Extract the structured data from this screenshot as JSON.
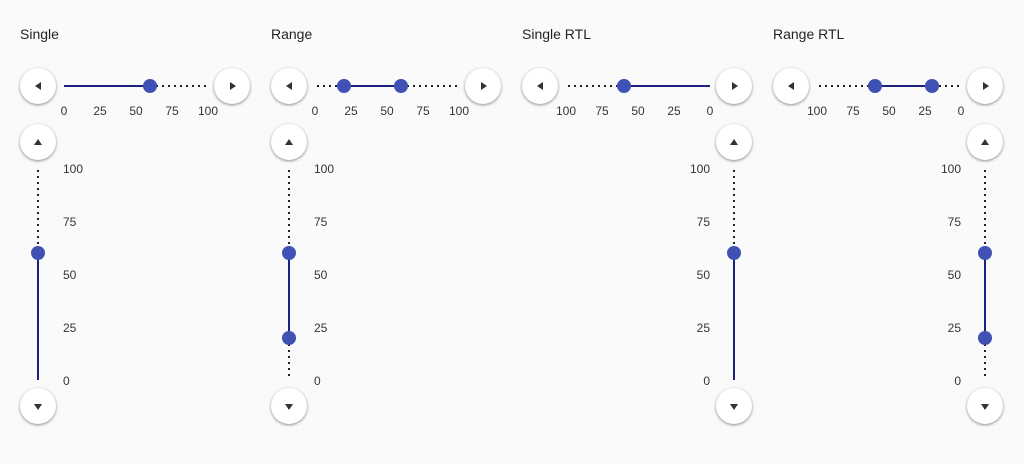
{
  "panels": [
    {
      "title": "Single",
      "rtl": false,
      "range": false,
      "values": [
        60
      ],
      "horizontal_ticks": [
        "0",
        "25",
        "50",
        "75",
        "100"
      ],
      "vertical_ticks": [
        "100",
        "75",
        "50",
        "25",
        "0"
      ]
    },
    {
      "title": "Range",
      "rtl": false,
      "range": true,
      "values": [
        20,
        60
      ],
      "horizontal_ticks": [
        "0",
        "25",
        "50",
        "75",
        "100"
      ],
      "vertical_ticks": [
        "100",
        "75",
        "50",
        "25",
        "0"
      ]
    },
    {
      "title": "Single RTL",
      "rtl": true,
      "range": false,
      "values": [
        60
      ],
      "horizontal_ticks": [
        "100",
        "75",
        "50",
        "25",
        "0"
      ],
      "vertical_ticks": [
        "100",
        "75",
        "50",
        "25",
        "0"
      ]
    },
    {
      "title": "Range RTL",
      "rtl": true,
      "range": true,
      "values": [
        20,
        60
      ],
      "horizontal_ticks": [
        "100",
        "75",
        "50",
        "25",
        "0"
      ],
      "vertical_ticks": [
        "100",
        "75",
        "50",
        "25",
        "0"
      ]
    }
  ],
  "icons": {
    "decrease_horizontal": "arrow-left-icon",
    "increase_horizontal": "arrow-right-icon",
    "increase_vertical": "arrow-up-icon",
    "decrease_vertical": "arrow-down-icon"
  },
  "colors": {
    "thumb": "#3f51b5",
    "active_track": "#1a237e",
    "background": "#fafafa"
  }
}
